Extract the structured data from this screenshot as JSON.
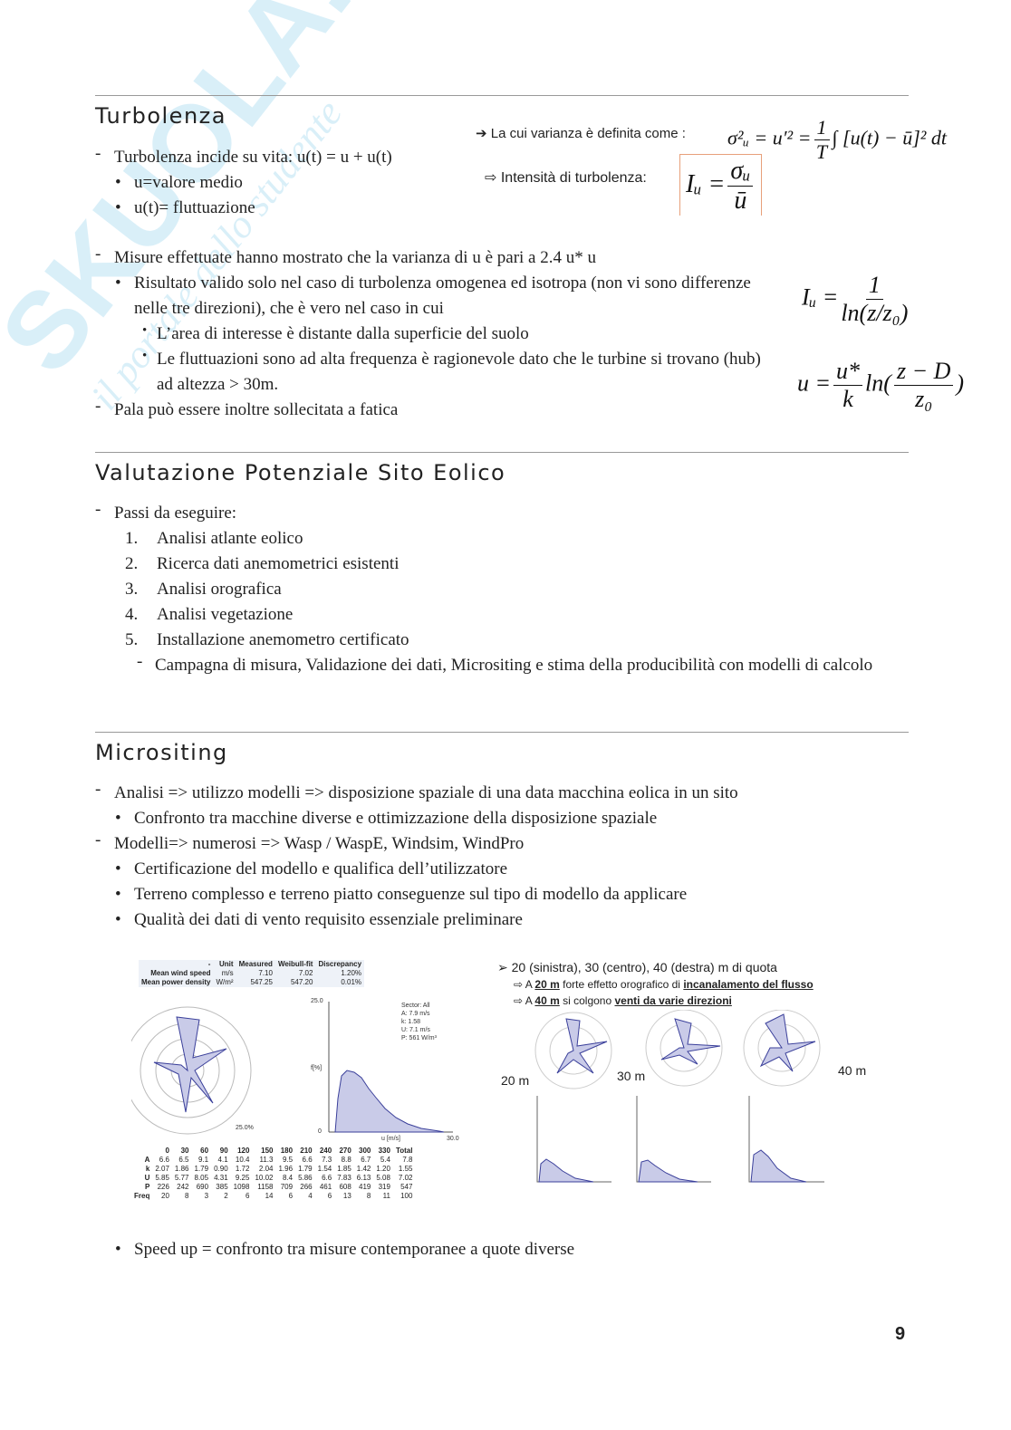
{
  "watermark": {
    "brand": "SKUOLA.net",
    "tagline": "il portale dello studente"
  },
  "sections": [
    {
      "title": "Turbolenza",
      "groups": [
        [
          {
            "level": 0,
            "text": "Turbolenza incide su vita: u(t) = u + u(t)"
          },
          {
            "level": 1,
            "text": "u=valore medio"
          },
          {
            "level": 1,
            "text": "u(t)= fluttuazione"
          }
        ],
        [
          {
            "level": 0,
            "text": "Misure effettuate hanno mostrato che la varianza di u è pari a 2.4 u*  u"
          },
          {
            "level": 1,
            "text": "Risultato valido solo nel caso di turbolenza omogenea ed isotropa (non vi sono differenze nelle tre direzioni), che è vero nel caso in cui"
          },
          {
            "level": 2,
            "text": "L’area di interesse è distante dalla superficie del suolo"
          },
          {
            "level": 2,
            "text": "Le fluttuazioni sono ad alta frequenza è ragionevole dato che le turbine si trovano (hub) ad altezza > 30m."
          },
          {
            "level": 0,
            "text": "Pala può essere inoltre sollecitata a fatica"
          }
        ]
      ]
    },
    {
      "title": "Valutazione Potenziale Sito Eolico",
      "groups": [
        [
          {
            "level": 0,
            "text": "Passi da eseguire:"
          },
          {
            "level": 1,
            "num": "1.",
            "text": "Analisi atlante eolico"
          },
          {
            "level": 1,
            "num": "2.",
            "text": "Ricerca dati anemometrici esistenti"
          },
          {
            "level": 1,
            "num": "3.",
            "text": " Analisi orografica"
          },
          {
            "level": 1,
            "num": "4.",
            "text": " Analisi vegetazione"
          },
          {
            "level": 1,
            "num": "5.",
            "text": "Installazione anemometro certificato"
          },
          {
            "level": 2,
            "text": "Campagna di misura, Validazione dei dati, Micrositing e stima della producibilità con modelli di calcolo"
          }
        ]
      ]
    },
    {
      "title": "Micrositing",
      "groups": [
        [
          {
            "level": 0,
            "text": "Analisi => utilizzo modelli => disposizione spaziale di una data macchina eolica in un sito"
          },
          {
            "level": 1,
            "text": "Confronto tra macchine diverse e ottimizzazione della disposizione spaziale"
          },
          {
            "level": 0,
            "text": "Modelli=> numerosi => Wasp / WaspE, Windsim, WindPro"
          },
          {
            "level": 1,
            "text": "Certificazione del modello e qualifica dell’utilizzatore"
          },
          {
            "level": 1,
            "text": "Terreno complesso e terreno piatto conseguenze sul tipo di modello da applicare"
          },
          {
            "level": 1,
            "text": "Qualità dei dati di vento requisito essenziale preliminare"
          }
        ],
        [
          {
            "level": 1,
            "text": "Speed up = confronto tra misure contemporanee a quote diverse"
          }
        ]
      ]
    }
  ],
  "formulas": {
    "variance_label": "La cui varianza è definita come :",
    "variance": {
      "lhs": "σ²ᵤ = u′² =",
      "num": "1",
      "den": "T",
      "rest": "∫ [u(t) − ū]² dt"
    },
    "intensity_label": "Intensità di turbolenza:",
    "intensity": {
      "lhs": "Iᵤ =",
      "num": "σᵤ",
      "den": "ū"
    },
    "intensity_log": {
      "lhs": "Iᵤ =",
      "num": "1",
      "den": "ln(z/z₀)"
    },
    "log_profile": {
      "lhs": "u =",
      "num": "u*",
      "den": "k",
      "mid": "ln",
      "num2": "z − D",
      "den2": "z₀"
    }
  },
  "figure_left": {
    "summary_header": [
      "-",
      "Unit",
      "Measured",
      "Weibull-fit",
      "Discrepancy"
    ],
    "summary_rows": [
      [
        "Mean wind speed",
        "m/s",
        "7.10",
        "7.02",
        "1.20%"
      ],
      [
        "Mean power density",
        "W/m²",
        "547.25",
        "547.20",
        "0.01%"
      ]
    ],
    "sector_info": [
      "Sector: All",
      "A: 7.9 m/s",
      "k: 1.58",
      "U: 7.1 m/s",
      "P: 561 W/m³"
    ],
    "rose_label": "25.0%",
    "hist_ymax": "25.0",
    "hist_ylabel": "f[%]",
    "hist_zero": "0",
    "hist_xlabel": "u [m/s]",
    "hist_xmax": "30.0",
    "sector_header": [
      "",
      "0",
      "30",
      "60",
      "90",
      "120",
      "150",
      "180",
      "210",
      "240",
      "270",
      "300",
      "330",
      "Total"
    ],
    "sector_rows": [
      [
        "A",
        "6.6",
        "6.5",
        "9.1",
        "4.1",
        "10.4",
        "11.3",
        "9.5",
        "6.6",
        "7.3",
        "8.8",
        "6.7",
        "5.4",
        "7.8"
      ],
      [
        "k",
        "2.07",
        "1.86",
        "1.79",
        "0.90",
        "1.72",
        "2.04",
        "1.96",
        "1.79",
        "1.54",
        "1.85",
        "1.42",
        "1.20",
        "1.55"
      ],
      [
        "U",
        "5.85",
        "5.77",
        "8.05",
        "4.31",
        "9.25",
        "10.02",
        "8.4",
        "5.86",
        "6.6",
        "7.83",
        "6.13",
        "5.08",
        "7.02"
      ],
      [
        "P",
        "226",
        "242",
        "690",
        "385",
        "1098",
        "1158",
        "709",
        "266",
        "461",
        "608",
        "419",
        "319",
        "547"
      ],
      [
        "Freq",
        "20",
        "8",
        "3",
        "2",
        "6",
        "14",
        "6",
        "4",
        "6",
        "13",
        "8",
        "11",
        "100"
      ]
    ]
  },
  "figure_right": {
    "line1": "20 (sinistra), 30 (centro), 40 (destra) m di quota",
    "line2": {
      "a": "A ",
      "b": "20 m",
      "c": " forte effetto orografico di ",
      "d": "incanalamento del flusso"
    },
    "line3": {
      "a": "A ",
      "b": "40 m",
      "c": " si colgono ",
      "d": "venti da varie direzioni"
    },
    "labels": [
      "20 m",
      "30 m",
      "40 m"
    ]
  },
  "page_number": "9"
}
